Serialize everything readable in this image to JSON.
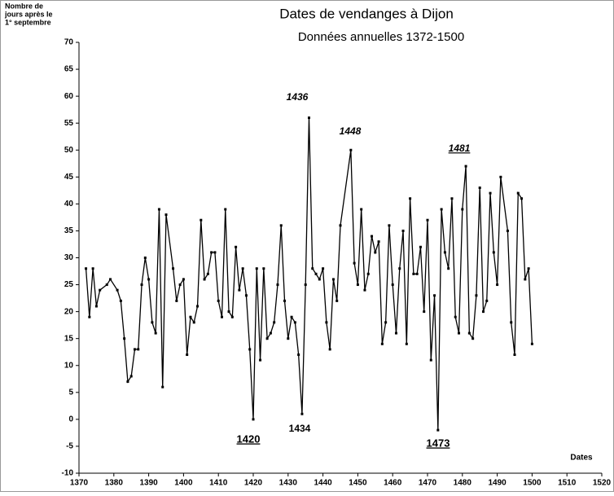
{
  "chart_data": {
    "type": "line",
    "title": "Dates de vendanges à Dijon",
    "subtitle": "Données annuelles 1372-1500",
    "ylabel": [
      "Nombre de",
      "jours après le",
      "1° septembre"
    ],
    "xlabel": "Dates",
    "annotations": [
      "1436",
      "1448",
      "1481",
      "1420",
      "1434",
      "1473"
    ],
    "x": [
      1372,
      1373,
      1374,
      1375,
      1376,
      1378,
      1379,
      1381,
      1382,
      1383,
      1384,
      1385,
      1386,
      1387,
      1388,
      1389,
      1390,
      1391,
      1392,
      1393,
      1394,
      1395,
      1397,
      1398,
      1399,
      1400,
      1401,
      1402,
      1403,
      1404,
      1405,
      1406,
      1407,
      1408,
      1409,
      1410,
      1411,
      1412,
      1413,
      1414,
      1415,
      1416,
      1417,
      1418,
      1419,
      1420,
      1421,
      1422,
      1423,
      1424,
      1425,
      1426,
      1427,
      1428,
      1429,
      1430,
      1431,
      1432,
      1433,
      1434,
      1435,
      1436,
      1437,
      1438,
      1439,
      1440,
      1441,
      1442,
      1443,
      1444,
      1445,
      1448,
      1449,
      1450,
      1451,
      1452,
      1453,
      1454,
      1455,
      1456,
      1457,
      1458,
      1459,
      1460,
      1461,
      1462,
      1463,
      1464,
      1465,
      1466,
      1467,
      1468,
      1469,
      1470,
      1471,
      1472,
      1473,
      1474,
      1475,
      1476,
      1477,
      1478,
      1479,
      1480,
      1481,
      1482,
      1483,
      1484,
      1485,
      1486,
      1487,
      1488,
      1489,
      1490,
      1491,
      1493,
      1494,
      1495,
      1496,
      1497,
      1498,
      1499,
      1500
    ],
    "series": [
      {
        "name": "Dates de vendanges",
        "color": "#000000",
        "values": [
          28,
          19,
          28,
          21,
          24,
          25,
          26,
          24,
          22,
          15,
          7,
          8,
          13,
          13,
          25,
          30,
          26,
          18,
          16,
          39,
          6,
          38,
          28,
          22,
          25,
          26,
          12,
          19,
          18,
          21,
          37,
          26,
          27,
          31,
          31,
          22,
          19,
          39,
          20,
          19,
          32,
          24,
          28,
          23,
          13,
          0,
          28,
          11,
          28,
          15,
          16,
          18,
          25,
          36,
          22,
          15,
          19,
          18,
          12,
          1,
          25,
          56,
          28,
          27,
          26,
          28,
          18,
          13,
          26,
          22,
          36,
          50,
          29,
          25,
          39,
          24,
          27,
          34,
          31,
          33,
          14,
          18,
          36,
          25,
          16,
          28,
          35,
          14,
          41,
          27,
          27,
          32,
          20,
          37,
          11,
          23,
          -2,
          39,
          31,
          28,
          41,
          19,
          16,
          39,
          47,
          16,
          15,
          23,
          43,
          20,
          22,
          42,
          31,
          25,
          45,
          35,
          18,
          12,
          42,
          41,
          26,
          28,
          14
        ]
      }
    ],
    "xlim": [
      1370,
      1520
    ],
    "xticks": [
      1370,
      1380,
      1390,
      1400,
      1410,
      1420,
      1430,
      1440,
      1450,
      1460,
      1470,
      1480,
      1490,
      1500,
      1510,
      1520
    ],
    "ylim": [
      -10,
      70
    ],
    "yticks": [
      -10,
      -5,
      0,
      5,
      10,
      15,
      20,
      25,
      30,
      35,
      40,
      45,
      50,
      55,
      60,
      65,
      70
    ],
    "grid": false
  }
}
